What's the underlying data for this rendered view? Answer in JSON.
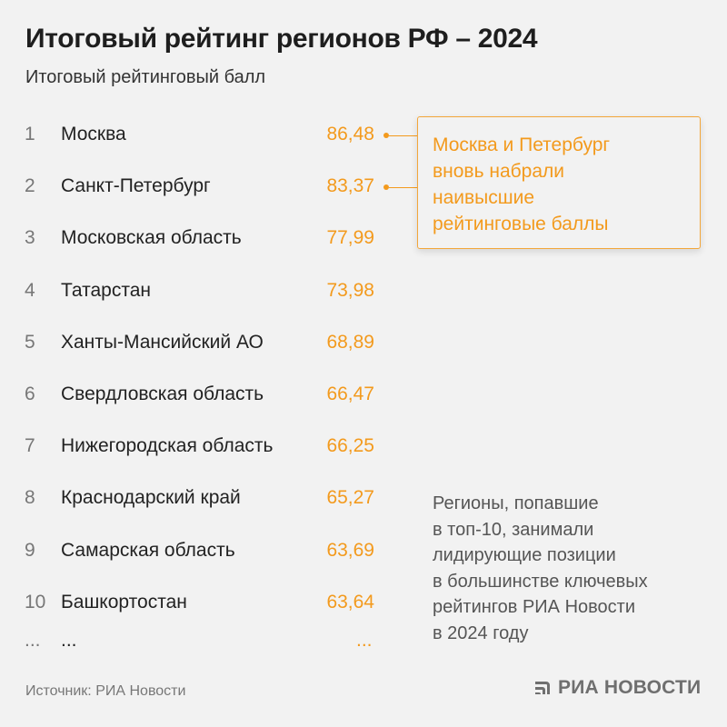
{
  "header": {
    "title": "Итоговый рейтинг регионов РФ – 2024",
    "subtitle": "Итоговый рейтинговый балл"
  },
  "colors": {
    "accent": "#f39a1d",
    "background": "#f2f2f2",
    "text": "#222222",
    "rank": "#777777"
  },
  "chart_data": {
    "type": "table",
    "title": "Итоговый рейтинг регионов РФ – 2024",
    "subtitle": "Итоговый рейтинговый балл",
    "columns": [
      "rank",
      "region",
      "score"
    ],
    "rows": [
      {
        "rank": "1",
        "region": "Москва",
        "score": "86,48",
        "value": 86.48,
        "highlight": true
      },
      {
        "rank": "2",
        "region": "Санкт-Петербург",
        "score": "83,37",
        "value": 83.37,
        "highlight": true
      },
      {
        "rank": "3",
        "region": "Московская область",
        "score": "77,99",
        "value": 77.99,
        "highlight": false
      },
      {
        "rank": "4",
        "region": "Татарстан",
        "score": "73,98",
        "value": 73.98,
        "highlight": false
      },
      {
        "rank": "5",
        "region": "Ханты-Мансийский АО",
        "score": "68,89",
        "value": 68.89,
        "highlight": false
      },
      {
        "rank": "6",
        "region": "Свердловская область",
        "score": "66,47",
        "value": 66.47,
        "highlight": false
      },
      {
        "rank": "7",
        "region": "Нижегородская область",
        "score": "66,25",
        "value": 66.25,
        "highlight": false
      },
      {
        "rank": "8",
        "region": "Краснодарский край",
        "score": "65,27",
        "value": 65.27,
        "highlight": false
      },
      {
        "rank": "9",
        "region": "Самарская область",
        "score": "63,69",
        "value": 63.69,
        "highlight": false
      },
      {
        "rank": "10",
        "region": "Башкортостан",
        "score": "63,64",
        "value": 63.64,
        "highlight": false
      }
    ],
    "ellipsis": {
      "rank": "...",
      "region": "...",
      "score": "..."
    }
  },
  "callout": {
    "text": "Москва и Петербург\nвновь набрали\nнаивысшие\nрейтинговые баллы"
  },
  "note": {
    "text": "Регионы, попавшие\nв топ-10, занимали\nлидирующие позиции\nв большинстве ключевых\nрейтингов РИА Новости\nв 2024 году"
  },
  "footer": {
    "source": "Источник: РИА Новости",
    "logo_text": "РИА НОВОСТИ",
    "logo_icon": "ria-novosti-logo-icon"
  }
}
